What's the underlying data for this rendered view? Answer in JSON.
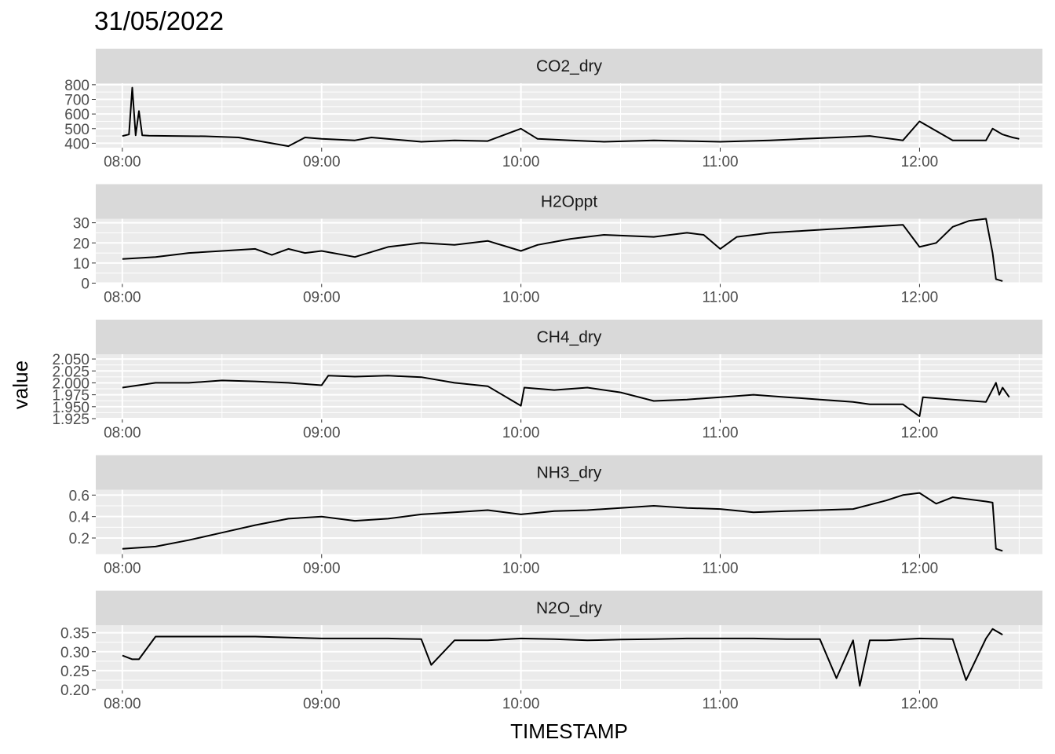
{
  "title": "31/05/2022",
  "colors": {
    "panel_bg": "#ebebeb",
    "grid_major": "#ffffff",
    "strip_bg": "#d9d9d9",
    "line": "#000000",
    "tick_text": "#4d4d4d"
  },
  "chart_data": {
    "type": "line",
    "faceted": true,
    "facet_scales": "free_y",
    "xlabel": "TIMESTAMP",
    "ylabel": "value",
    "x_unit": "hour of day",
    "x_ticks": [
      "08:00",
      "09:00",
      "10:00",
      "11:00",
      "12:00"
    ],
    "xlim": [
      "07:52",
      "12:37"
    ],
    "grid": true,
    "legend": "none",
    "panels": [
      {
        "name": "CO2_dry",
        "ylim": [
          370,
          810
        ],
        "y_ticks": [
          "400",
          "500",
          "600",
          "700",
          "800"
        ],
        "x": [
          "08:00",
          "08:02",
          "08:03",
          "08:04",
          "08:05",
          "08:06",
          "08:08",
          "08:15",
          "08:25",
          "08:35",
          "08:50",
          "08:55",
          "09:00",
          "09:10",
          "09:15",
          "09:30",
          "09:40",
          "09:50",
          "10:00",
          "10:05",
          "10:15",
          "10:25",
          "10:40",
          "10:50",
          "11:00",
          "11:15",
          "11:25",
          "11:35",
          "11:45",
          "11:55",
          "12:00",
          "12:10",
          "12:20",
          "12:22",
          "12:25",
          "12:28",
          "12:30"
        ],
        "values": [
          450,
          460,
          780,
          455,
          620,
          455,
          452,
          450,
          448,
          440,
          380,
          440,
          430,
          420,
          440,
          410,
          420,
          415,
          500,
          430,
          420,
          410,
          420,
          415,
          410,
          420,
          430,
          440,
          450,
          420,
          550,
          420,
          420,
          500,
          460,
          440,
          430
        ]
      },
      {
        "name": "H2Oppt",
        "ylim": [
          0,
          32
        ],
        "y_ticks": [
          "0",
          "10",
          "20",
          "30"
        ],
        "x": [
          "08:00",
          "08:10",
          "08:20",
          "08:30",
          "08:40",
          "08:45",
          "08:50",
          "08:55",
          "09:00",
          "09:10",
          "09:20",
          "09:30",
          "09:40",
          "09:50",
          "10:00",
          "10:05",
          "10:15",
          "10:25",
          "10:40",
          "10:50",
          "10:55",
          "11:00",
          "11:05",
          "11:15",
          "11:25",
          "11:35",
          "11:45",
          "11:55",
          "12:00",
          "12:05",
          "12:10",
          "12:15",
          "12:20",
          "12:22",
          "12:23",
          "12:25"
        ],
        "values": [
          12,
          13,
          15,
          16,
          17,
          14,
          17,
          15,
          16,
          13,
          18,
          20,
          19,
          21,
          16,
          19,
          22,
          24,
          23,
          25,
          24,
          17,
          23,
          25,
          26,
          27,
          28,
          29,
          18,
          20,
          28,
          31,
          32,
          15,
          2,
          1
        ]
      },
      {
        "name": "CH4_dry",
        "ylim": [
          1.925,
          2.06
        ],
        "y_ticks": [
          "1.925",
          "1.950",
          "1.975",
          "2.000",
          "2.025",
          "2.050"
        ],
        "x": [
          "08:00",
          "08:10",
          "08:20",
          "08:30",
          "08:40",
          "08:50",
          "09:00",
          "09:02",
          "09:10",
          "09:20",
          "09:30",
          "09:40",
          "09:50",
          "10:00",
          "10:01",
          "10:10",
          "10:20",
          "10:30",
          "10:40",
          "10:50",
          "11:00",
          "11:10",
          "11:20",
          "11:30",
          "11:40",
          "11:45",
          "11:55",
          "12:00",
          "12:01",
          "12:10",
          "12:20",
          "12:23",
          "12:24",
          "12:25",
          "12:27"
        ],
        "values": [
          1.99,
          2.0,
          2.0,
          2.005,
          2.003,
          2.0,
          1.995,
          2.015,
          2.013,
          2.015,
          2.012,
          2.0,
          1.993,
          1.952,
          1.99,
          1.985,
          1.99,
          1.98,
          1.962,
          1.965,
          1.97,
          1.975,
          1.97,
          1.965,
          1.96,
          1.955,
          1.955,
          1.93,
          1.97,
          1.965,
          1.96,
          2.0,
          1.975,
          1.99,
          1.97
        ]
      },
      {
        "name": "NH3_dry",
        "ylim": [
          0.05,
          0.65
        ],
        "y_ticks": [
          "0.2",
          "0.4",
          "0.6"
        ],
        "x": [
          "08:00",
          "08:10",
          "08:20",
          "08:30",
          "08:40",
          "08:50",
          "09:00",
          "09:10",
          "09:20",
          "09:30",
          "09:40",
          "09:50",
          "10:00",
          "10:10",
          "10:20",
          "10:30",
          "10:40",
          "10:50",
          "11:00",
          "11:10",
          "11:20",
          "11:30",
          "11:40",
          "11:50",
          "11:55",
          "12:00",
          "12:05",
          "12:10",
          "12:15",
          "12:20",
          "12:22",
          "12:23",
          "12:25"
        ],
        "values": [
          0.1,
          0.12,
          0.18,
          0.25,
          0.32,
          0.38,
          0.4,
          0.36,
          0.38,
          0.42,
          0.44,
          0.46,
          0.42,
          0.45,
          0.46,
          0.48,
          0.5,
          0.48,
          0.47,
          0.44,
          0.45,
          0.46,
          0.47,
          0.55,
          0.6,
          0.62,
          0.52,
          0.58,
          0.56,
          0.54,
          0.53,
          0.1,
          0.08
        ]
      },
      {
        "name": "N2O_dry",
        "ylim": [
          0.2,
          0.37
        ],
        "y_ticks": [
          "0.20",
          "0.25",
          "0.30",
          "0.35"
        ],
        "x": [
          "08:00",
          "08:03",
          "08:05",
          "08:10",
          "08:20",
          "08:40",
          "09:00",
          "09:20",
          "09:30",
          "09:33",
          "09:40",
          "09:50",
          "10:00",
          "10:10",
          "10:20",
          "10:30",
          "10:40",
          "10:50",
          "11:00",
          "11:10",
          "11:20",
          "11:30",
          "11:35",
          "11:40",
          "11:42",
          "11:45",
          "11:50",
          "12:00",
          "12:10",
          "12:14",
          "12:20",
          "12:22",
          "12:25"
        ],
        "values": [
          0.29,
          0.28,
          0.28,
          0.34,
          0.34,
          0.34,
          0.335,
          0.335,
          0.333,
          0.265,
          0.33,
          0.33,
          0.335,
          0.333,
          0.33,
          0.332,
          0.333,
          0.335,
          0.335,
          0.335,
          0.333,
          0.333,
          0.23,
          0.33,
          0.21,
          0.33,
          0.33,
          0.335,
          0.333,
          0.225,
          0.335,
          0.36,
          0.345
        ]
      }
    ]
  }
}
